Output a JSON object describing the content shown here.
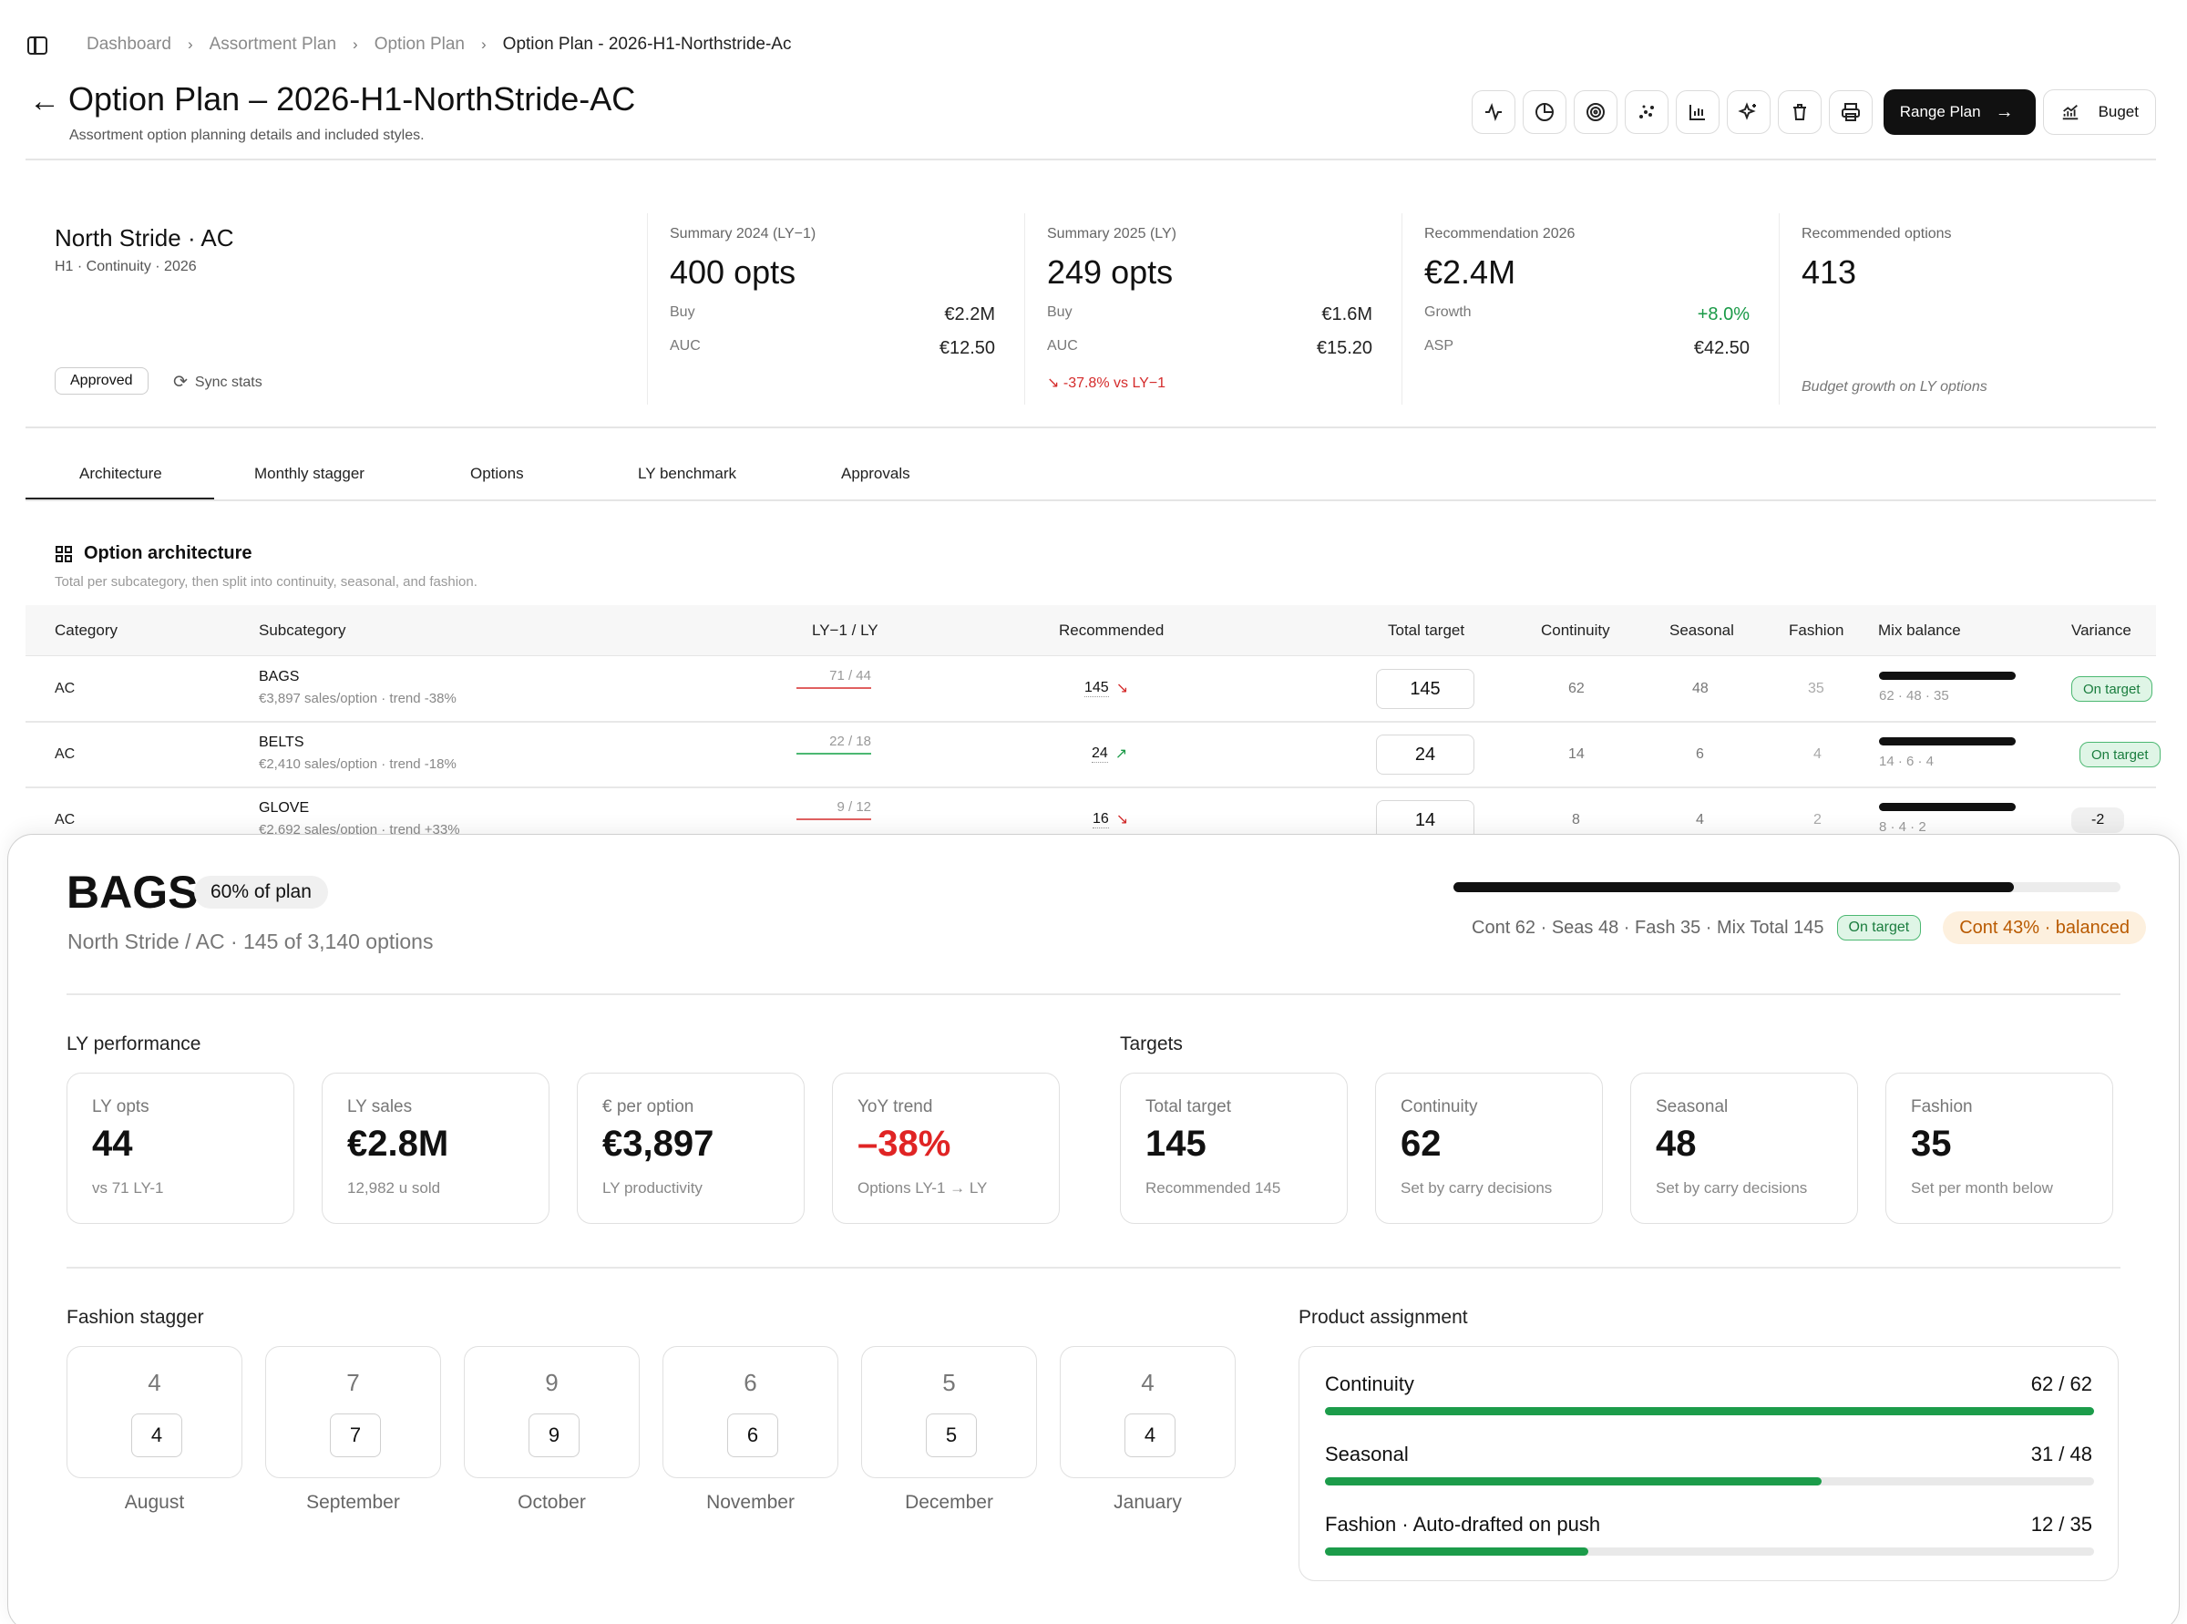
{
  "breadcrumb": [
    "Dashboard",
    "Assortment Plan",
    "Option Plan",
    "Option Plan - 2026-H1-Northstride-Ac"
  ],
  "header": {
    "title": "Option Plan – 2026-H1-NorthStride-AC",
    "subtitle": "Assortment option planning details and included styles.",
    "range_plan_label": "Range Plan",
    "buget_label": "Buget"
  },
  "summary": {
    "brand": "North Stride · AC",
    "brand_sub": "H1 · Continuity · 2026",
    "status": "Approved",
    "sync_label": "Sync stats",
    "ly1": {
      "label": "Summary 2024 (LY−1)",
      "value": "400 opts",
      "buy_label": "Buy",
      "buy": "€2.2M",
      "auc_label": "AUC",
      "auc": "€12.50"
    },
    "ly": {
      "label": "Summary 2025 (LY)",
      "value": "249 opts",
      "buy_label": "Buy",
      "buy": "€1.6M",
      "auc_label": "AUC",
      "auc": "€15.20",
      "change": "-37.8% vs LY−1"
    },
    "rec": {
      "label": "Recommendation 2026",
      "value": "€2.4M",
      "growth_label": "Growth",
      "growth": "+8.0%",
      "asp_label": "ASP",
      "asp": "€42.50"
    },
    "opts": {
      "label": "Recommended options",
      "value": "413",
      "note": "Budget growth on LY options"
    }
  },
  "tabs": [
    "Architecture",
    "Monthly stagger",
    "Options",
    "LY benchmark",
    "Approvals"
  ],
  "architecture": {
    "title": "Option architecture",
    "subtitle": "Total per subcategory, then split into continuity, seasonal, and fashion.",
    "columns": [
      "Category",
      "Subcategory",
      "LY−1 / LY",
      "Recommended",
      "Total target",
      "Continuity",
      "Seasonal",
      "Fashion",
      "Mix balance",
      "Variance"
    ],
    "rows": [
      {
        "category": "AC",
        "sub": "BAGS",
        "desc": "€3,897 sales/option · trend -38%",
        "lyly": "71 / 44",
        "trend": "down",
        "rec": "145",
        "target": "145",
        "cont": "62",
        "seas": "48",
        "fash": "35",
        "mix": "62 · 48 · 35",
        "variance": "On target"
      },
      {
        "category": "AC",
        "sub": "BELTS",
        "desc": "€2,410 sales/option · trend -18%",
        "lyly": "22 / 18",
        "trend": "up",
        "rec": "24",
        "target": "24",
        "cont": "14",
        "seas": "6",
        "fash": "4",
        "mix": "14 · 6 · 4",
        "variance": "On target"
      },
      {
        "category": "AC",
        "sub": "GLOVE",
        "desc": "€2,692 sales/option · trend +33%",
        "lyly": "9 / 12",
        "trend": "down",
        "rec": "16",
        "target": "14",
        "cont": "8",
        "seas": "4",
        "fash": "2",
        "mix": "8 · 4 · 2",
        "variance": "-2"
      }
    ]
  },
  "detail": {
    "title": "BAGS",
    "badge": "60% of plan",
    "subtitle": "North Stride / AC · 145 of 3,140 options",
    "mix_progress": 0.84,
    "mix_text": "Cont 62 · Seas 48 · Fash 35 · Mix Total 145",
    "mix_status": "On target",
    "mix_warn": "Cont 43% · balanced",
    "ly_title": "LY performance",
    "ly_cards": [
      {
        "label": "LY opts",
        "value": "44",
        "sub": "vs 71 LY-1"
      },
      {
        "label": "LY sales",
        "value": "€2.8M",
        "sub": "12,982 u sold"
      },
      {
        "label": "€ per option",
        "value": "€3,897",
        "sub": "LY productivity"
      },
      {
        "label": "YoY trend",
        "value": "–38%",
        "sub": "Options LY-1 → LY"
      }
    ],
    "targets_title": "Targets",
    "target_cards": [
      {
        "label": "Total target",
        "value": "145",
        "sub": "Recommended 145"
      },
      {
        "label": "Continuity",
        "value": "62",
        "sub": "Set by carry decisions"
      },
      {
        "label": "Seasonal",
        "value": "48",
        "sub": "Set by carry decisions"
      },
      {
        "label": "Fashion",
        "value": "35",
        "sub": "Set per month below"
      }
    ],
    "stagger_title": "Fashion stagger",
    "months": [
      {
        "rec": "4",
        "value": "4",
        "label": "August"
      },
      {
        "rec": "7",
        "value": "7",
        "label": "September"
      },
      {
        "rec": "9",
        "value": "9",
        "label": "October"
      },
      {
        "rec": "6",
        "value": "6",
        "label": "November"
      },
      {
        "rec": "5",
        "value": "5",
        "label": "December"
      },
      {
        "rec": "4",
        "value": "4",
        "label": "January"
      }
    ],
    "assignment_title": "Product assignment",
    "assignment": [
      {
        "label": "Continuity",
        "count": "62 / 62",
        "progress": 1.0
      },
      {
        "label": "Seasonal",
        "count": "31 / 48",
        "progress": 0.646
      },
      {
        "label": "Fashion · Auto-drafted on push",
        "count": "12 / 35",
        "progress": 0.343
      }
    ]
  },
  "colors": {
    "positive": "#1a9a47",
    "negative": "#d42b2b",
    "progress": "#1c9c4a",
    "warn": "#b95a00"
  }
}
